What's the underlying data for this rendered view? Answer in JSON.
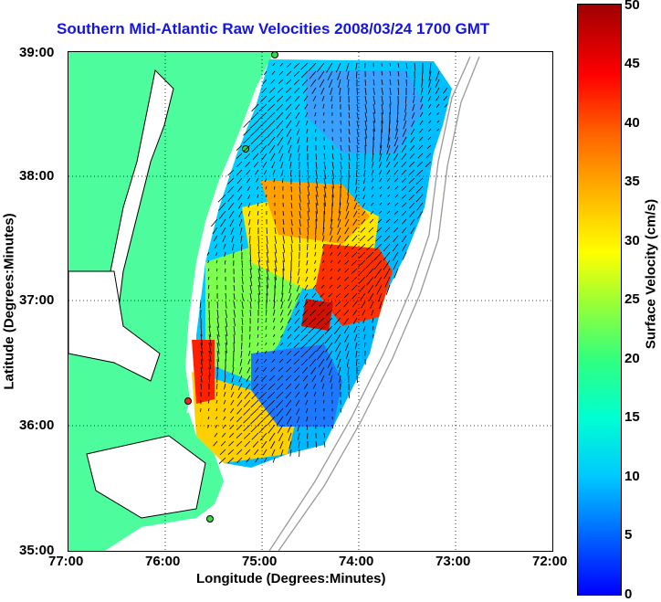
{
  "title": "Southern Mid-Atlantic Raw Velocities 2008/03/24 1700 GMT",
  "xlabel": "Longitude (Degrees:Minutes)",
  "ylabel": "Latitude (Degrees:Minutes)",
  "x_ticks": [
    "77:00",
    "76:00",
    "75:00",
    "74:00",
    "73:00",
    "72:00"
  ],
  "y_ticks": [
    "39:00",
    "38:00",
    "37:00",
    "36:00",
    "35:00"
  ],
  "colorbar": {
    "label": "Surface Velocity (cm/s)",
    "ticks": [
      "50",
      "45",
      "40",
      "35",
      "30",
      "25",
      "20",
      "15",
      "10",
      "5",
      "0"
    ],
    "range": [
      0,
      50
    ]
  },
  "colors": {
    "land": "#4dfc9c",
    "title": "#1414e6",
    "station_green": "#36d84a",
    "station_red": "#ff2020"
  }
}
